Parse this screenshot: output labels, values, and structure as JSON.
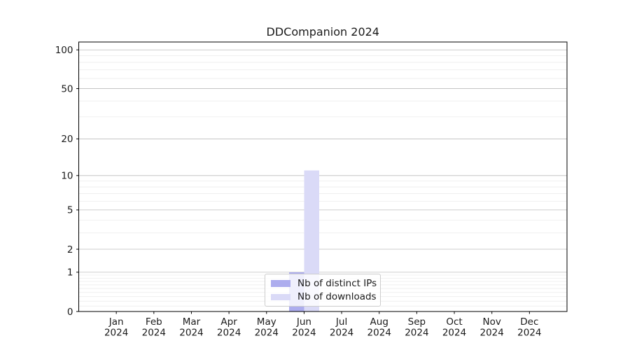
{
  "chart_data": {
    "type": "bar",
    "title": "DDCompanion 2024",
    "categories": [
      "Jan",
      "Feb",
      "Mar",
      "Apr",
      "May",
      "Jun",
      "Jul",
      "Aug",
      "Sep",
      "Oct",
      "Nov",
      "Dec"
    ],
    "x_year_label": "2024",
    "series": [
      {
        "name": "Nb of distinct IPs",
        "color": "#adadee",
        "values": [
          0,
          0,
          0,
          0,
          0,
          1,
          0,
          0,
          0,
          0,
          0,
          0
        ]
      },
      {
        "name": "Nb of downloads",
        "color": "#dadaf7",
        "values": [
          0,
          0,
          0,
          0,
          0,
          11,
          0,
          0,
          0,
          0,
          0,
          0
        ]
      }
    ],
    "y_scale": "log1p",
    "y_ticks": [
      0,
      1,
      2,
      5,
      10,
      20,
      50,
      100
    ],
    "y_minor_gridlines": [
      0.1,
      0.2,
      0.3,
      0.4,
      0.5,
      0.6,
      0.7,
      0.8,
      0.9,
      3,
      4,
      6,
      7,
      8,
      9,
      30,
      40,
      60,
      70,
      80,
      90
    ],
    "ylim": [
      0,
      115
    ],
    "xlabel": "",
    "ylabel": "",
    "grid": "horizontal",
    "legend": {
      "position": "lower center",
      "entries": [
        "Nb of distinct IPs",
        "Nb of downloads"
      ]
    }
  },
  "colors": {
    "background": "#ffffff",
    "spine": "#000000",
    "tick": "#000000",
    "major_grid": "#bcbcbc",
    "minor_grid": "#ebebeb",
    "text": "#1a1a1a",
    "legend_border": "#cccccc",
    "legend_bg": "rgba(255,255,255,0.8)"
  }
}
